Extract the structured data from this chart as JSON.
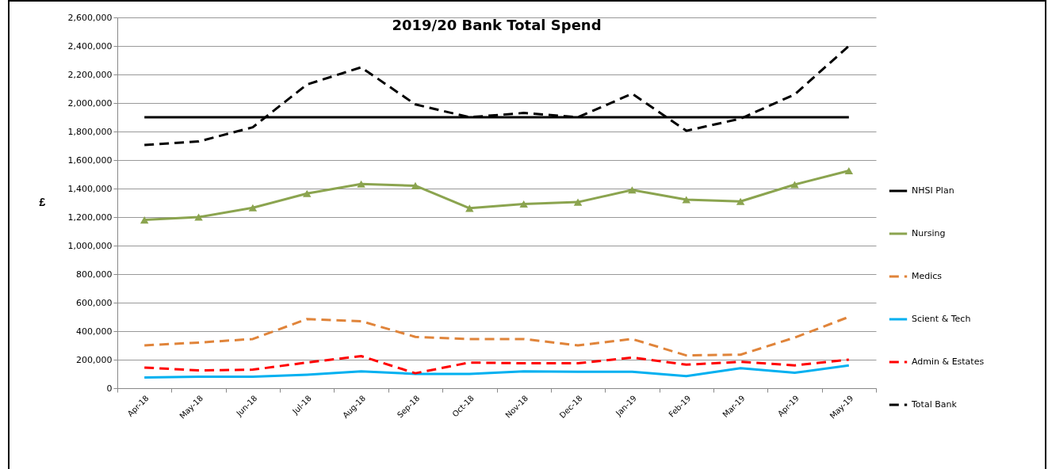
{
  "chart_data": {
    "type": "line",
    "title": "2019/20 Bank Total Spend",
    "ylabel": "£",
    "categories": [
      "Apr-18",
      "May-18",
      "Jun-18",
      "Jul-18",
      "Aug-18",
      "Sep-18",
      "Oct-18",
      "Nov-18",
      "Dec-18",
      "Jan-19",
      "Feb-19",
      "Mar-19",
      "Apr-19",
      "May-19"
    ],
    "ylim": [
      0,
      2600000
    ],
    "yticks": [
      {
        "value": 0,
        "label": "0"
      },
      {
        "value": 200000,
        "label": "200,000"
      },
      {
        "value": 400000,
        "label": "400,000"
      },
      {
        "value": 600000,
        "label": "600,000"
      },
      {
        "value": 800000,
        "label": "800,000"
      },
      {
        "value": 1000000,
        "label": "1,000,000"
      },
      {
        "value": 1200000,
        "label": "1,200,000"
      },
      {
        "value": 1400000,
        "label": "1,400,000"
      },
      {
        "value": 1600000,
        "label": "1,600,000"
      },
      {
        "value": 1800000,
        "label": "1,800,000"
      },
      {
        "value": 2000000,
        "label": "2,000,000"
      },
      {
        "value": 2200000,
        "label": "2,200,000"
      },
      {
        "value": 2400000,
        "label": "2,400,000"
      },
      {
        "value": 2600000,
        "label": "2,600,000"
      }
    ],
    "grid": "y",
    "legend": "right",
    "series": [
      {
        "name": "NHSI Plan",
        "color": "#000000",
        "line_style": "solid",
        "marker": "none",
        "values": [
          1900000,
          1900000,
          1900000,
          1900000,
          1900000,
          1900000,
          1900000,
          1900000,
          1900000,
          1900000,
          1900000,
          1900000,
          1900000,
          1900000
        ]
      },
      {
        "name": "Nursing",
        "color": "#8ba44f",
        "line_style": "solid",
        "marker": "triangle",
        "values": [
          1180000,
          1200000,
          1265000,
          1365000,
          1432000,
          1420000,
          1262000,
          1292000,
          1305000,
          1390000,
          1322000,
          1310000,
          1428000,
          1525000
        ]
      },
      {
        "name": "Medics",
        "color": "#e0843a",
        "line_style": "dashed",
        "marker": "none",
        "values": [
          300000,
          320000,
          345000,
          485000,
          470000,
          360000,
          345000,
          345000,
          300000,
          345000,
          230000,
          235000,
          355000,
          500000
        ]
      },
      {
        "name": "Scient & Tech",
        "color": "#00b0f0",
        "line_style": "solid",
        "marker": "none",
        "values": [
          75000,
          80000,
          80000,
          95000,
          118000,
          100000,
          100000,
          118000,
          115000,
          115000,
          85000,
          140000,
          108000,
          160000
        ]
      },
      {
        "name": "Admin & Estates",
        "color": "#ff0000",
        "line_style": "dashed",
        "marker": "none",
        "values": [
          145000,
          125000,
          130000,
          180000,
          225000,
          105000,
          180000,
          175000,
          175000,
          215000,
          165000,
          185000,
          160000,
          200000
        ]
      },
      {
        "name": "Total Bank",
        "color": "#000000",
        "line_style": "dashed",
        "marker": "none",
        "values": [
          1705000,
          1730000,
          1830000,
          2130000,
          2250000,
          1990000,
          1900000,
          1930000,
          1900000,
          2065000,
          1805000,
          1890000,
          2060000,
          2400000
        ]
      }
    ]
  }
}
